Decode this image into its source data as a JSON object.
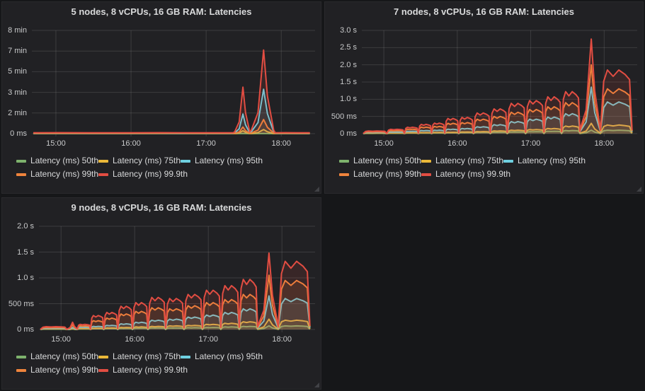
{
  "page": {
    "background": "#161719",
    "panel_background": "#212124",
    "gridline_color": "rgba(255,255,255,0.12)",
    "text_color": "#d8d9da",
    "tick_color": "#c9cacb"
  },
  "chart_data": [
    {
      "type": "area",
      "title": "5 nodes, 8 vCPUs, 16 GB RAM: Latencies",
      "xlabel": "",
      "ylabel": "",
      "values_unit": "seconds",
      "xlim": [
        14.68,
        18.45
      ],
      "ylim": [
        0,
        500
      ],
      "grid": true,
      "legend_position": "bottom-left",
      "y_axis_width": 42,
      "xticks": [
        {
          "label": "15:00",
          "t": 15
        },
        {
          "label": "16:00",
          "t": 16
        },
        {
          "label": "17:00",
          "t": 17
        },
        {
          "label": "18:00",
          "t": 18
        }
      ],
      "yticks": [
        {
          "label": "0 ms",
          "v": 0
        },
        {
          "label": "2 min",
          "v": 100
        },
        {
          "label": "3 min",
          "v": 200
        },
        {
          "label": "5 min",
          "v": 300
        },
        {
          "label": "7 min",
          "v": 400
        },
        {
          "label": "8 min",
          "v": 500
        }
      ],
      "series": [
        {
          "name": "Latency (ms) 50th",
          "color": "#7EB26D"
        },
        {
          "name": "Latency (ms) 75th",
          "color": "#EAB839"
        },
        {
          "name": "Latency (ms) 95th",
          "color": "#6ED0E0"
        },
        {
          "name": "Latency (ms) 99th",
          "color": "#EF843C"
        },
        {
          "name": "Latency (ms) 99.9th",
          "color": "#E24D42"
        }
      ],
      "segments": [
        {
          "shape": "flat",
          "t": [
            14.7,
            15.92
          ],
          "v": [
            0.5,
            0.9,
            1.8,
            2.8,
            4.5
          ]
        },
        {
          "shape": "flat",
          "t": [
            15.98,
            17.36
          ],
          "v": [
            0.5,
            0.9,
            1.8,
            2.8,
            4.5
          ]
        },
        {
          "shape": "spike",
          "t": [
            17.38,
            17.58
          ],
          "v": [
            1,
            14,
            95,
            32,
            225
          ]
        },
        {
          "shape": "spike",
          "t": [
            17.6,
            17.9
          ],
          "v": [
            1,
            20,
            215,
            68,
            405
          ]
        },
        {
          "shape": "flat",
          "t": [
            17.92,
            18.38
          ],
          "v": [
            0.5,
            0.9,
            1.8,
            2.8,
            4.5
          ]
        }
      ]
    },
    {
      "type": "area",
      "title": "7 nodes, 8 vCPUs, 16 GB RAM: Latencies",
      "xlabel": "",
      "ylabel": "",
      "values_unit": "seconds",
      "xlim": [
        14.7,
        18.45
      ],
      "ylim": [
        0,
        3.0
      ],
      "grid": true,
      "legend_position": "bottom-left",
      "y_axis_width": 52,
      "xticks": [
        {
          "label": "15:00",
          "t": 15
        },
        {
          "label": "16:00",
          "t": 16
        },
        {
          "label": "17:00",
          "t": 17
        },
        {
          "label": "18:00",
          "t": 18
        }
      ],
      "yticks": [
        {
          "label": "0 ms",
          "v": 0
        },
        {
          "label": "500 ms",
          "v": 0.5
        },
        {
          "label": "1.0 s",
          "v": 1.0
        },
        {
          "label": "1.5 s",
          "v": 1.5
        },
        {
          "label": "2.0 s",
          "v": 2.0
        },
        {
          "label": "2.5 s",
          "v": 2.5
        },
        {
          "label": "3.0 s",
          "v": 3.0
        }
      ],
      "series": [
        {
          "name": "Latency (ms) 50th",
          "color": "#7EB26D"
        },
        {
          "name": "Latency (ms) 75th",
          "color": "#EAB839"
        },
        {
          "name": "Latency (ms) 95th",
          "color": "#6ED0E0"
        },
        {
          "name": "Latency (ms) 99th",
          "color": "#EF843C"
        },
        {
          "name": "Latency (ms) 99.9th",
          "color": "#E24D42"
        }
      ],
      "segments": [
        {
          "shape": "plateau",
          "t": [
            14.72,
            15.04
          ],
          "v": [
            0.01,
            0.018,
            0.035,
            0.055,
            0.078
          ]
        },
        {
          "shape": "plateau",
          "t": [
            15.04,
            15.28
          ],
          "v": [
            0.012,
            0.02,
            0.05,
            0.09,
            0.125
          ]
        },
        {
          "shape": "plateau",
          "t": [
            15.28,
            15.47
          ],
          "v": [
            0.015,
            0.025,
            0.07,
            0.13,
            0.185
          ]
        },
        {
          "shape": "plateau",
          "t": [
            15.47,
            15.65
          ],
          "v": [
            0.018,
            0.03,
            0.09,
            0.19,
            0.27
          ]
        },
        {
          "shape": "plateau",
          "t": [
            15.65,
            15.83
          ],
          "v": [
            0.02,
            0.035,
            0.1,
            0.21,
            0.305
          ]
        },
        {
          "shape": "plateau",
          "t": [
            15.83,
            16.02
          ],
          "v": [
            0.025,
            0.04,
            0.13,
            0.3,
            0.44
          ]
        },
        {
          "shape": "plateau",
          "t": [
            16.02,
            16.22
          ],
          "v": [
            0.03,
            0.05,
            0.15,
            0.32,
            0.47
          ]
        },
        {
          "shape": "plateau",
          "t": [
            16.22,
            16.45
          ],
          "v": [
            0.035,
            0.06,
            0.2,
            0.42,
            0.6
          ]
        },
        {
          "shape": "plateau",
          "t": [
            16.45,
            16.68
          ],
          "v": [
            0.04,
            0.08,
            0.26,
            0.5,
            0.72
          ]
        },
        {
          "shape": "plateau",
          "t": [
            16.68,
            16.93
          ],
          "v": [
            0.05,
            0.1,
            0.35,
            0.62,
            0.88
          ]
        },
        {
          "shape": "plateau",
          "t": [
            16.93,
            17.18
          ],
          "v": [
            0.06,
            0.12,
            0.42,
            0.7,
            0.96
          ]
        },
        {
          "shape": "plateau",
          "t": [
            17.18,
            17.42
          ],
          "v": [
            0.07,
            0.15,
            0.48,
            0.78,
            1.07
          ]
        },
        {
          "shape": "plateau",
          "t": [
            17.42,
            17.67
          ],
          "v": [
            0.09,
            0.22,
            0.58,
            0.9,
            1.22
          ]
        },
        {
          "shape": "spike",
          "t": [
            17.67,
            17.95
          ],
          "v": [
            0.1,
            0.3,
            1.35,
            2.0,
            2.75
          ]
        },
        {
          "shape": "plateau",
          "t": [
            17.95,
            18.38
          ],
          "v": [
            0.1,
            0.25,
            0.92,
            1.3,
            1.85
          ]
        }
      ]
    },
    {
      "type": "area",
      "title": "9 nodes, 8 vCPUs, 16 GB RAM: Latencies",
      "xlabel": "",
      "ylabel": "",
      "values_unit": "seconds",
      "xlim": [
        14.7,
        18.45
      ],
      "ylim": [
        0,
        2.0
      ],
      "grid": true,
      "legend_position": "bottom-left",
      "y_axis_width": 52,
      "xticks": [
        {
          "label": "15:00",
          "t": 15
        },
        {
          "label": "16:00",
          "t": 16
        },
        {
          "label": "17:00",
          "t": 17
        },
        {
          "label": "18:00",
          "t": 18
        }
      ],
      "yticks": [
        {
          "label": "0 ms",
          "v": 0
        },
        {
          "label": "500 ms",
          "v": 0.5
        },
        {
          "label": "1.0 s",
          "v": 1.0
        },
        {
          "label": "1.5 s",
          "v": 1.5
        },
        {
          "label": "2.0 s",
          "v": 2.0
        }
      ],
      "series": [
        {
          "name": "Latency (ms) 50th",
          "color": "#7EB26D"
        },
        {
          "name": "Latency (ms) 75th",
          "color": "#EAB839"
        },
        {
          "name": "Latency (ms) 95th",
          "color": "#6ED0E0"
        },
        {
          "name": "Latency (ms) 99th",
          "color": "#EF843C"
        },
        {
          "name": "Latency (ms) 99.9th",
          "color": "#E24D42"
        }
      ],
      "segments": [
        {
          "shape": "plateau",
          "t": [
            14.72,
            15.08
          ],
          "v": [
            0.008,
            0.014,
            0.025,
            0.04,
            0.055
          ]
        },
        {
          "shape": "spike",
          "t": [
            15.08,
            15.22
          ],
          "v": [
            0.01,
            0.018,
            0.04,
            0.09,
            0.14
          ]
        },
        {
          "shape": "plateau",
          "t": [
            15.22,
            15.4
          ],
          "v": [
            0.012,
            0.02,
            0.045,
            0.07,
            0.1
          ]
        },
        {
          "shape": "plateau",
          "t": [
            15.4,
            15.58
          ],
          "v": [
            0.015,
            0.025,
            0.06,
            0.17,
            0.27
          ]
        },
        {
          "shape": "plateau",
          "t": [
            15.58,
            15.77
          ],
          "v": [
            0.018,
            0.03,
            0.08,
            0.22,
            0.33
          ]
        },
        {
          "shape": "plateau",
          "t": [
            15.77,
            15.97
          ],
          "v": [
            0.02,
            0.04,
            0.11,
            0.3,
            0.45
          ]
        },
        {
          "shape": "plateau",
          "t": [
            15.97,
            16.18
          ],
          "v": [
            0.025,
            0.05,
            0.14,
            0.35,
            0.52
          ]
        },
        {
          "shape": "plateau",
          "t": [
            16.18,
            16.42
          ],
          "v": [
            0.03,
            0.06,
            0.18,
            0.42,
            0.62
          ]
        },
        {
          "shape": "plateau",
          "t": [
            16.42,
            16.67
          ],
          "v": [
            0.03,
            0.07,
            0.2,
            0.4,
            0.6
          ]
        },
        {
          "shape": "plateau",
          "t": [
            16.67,
            16.92
          ],
          "v": [
            0.035,
            0.08,
            0.24,
            0.46,
            0.68
          ]
        },
        {
          "shape": "plateau",
          "t": [
            16.92,
            17.17
          ],
          "v": [
            0.04,
            0.1,
            0.28,
            0.52,
            0.76
          ]
        },
        {
          "shape": "plateau",
          "t": [
            17.17,
            17.42
          ],
          "v": [
            0.05,
            0.12,
            0.33,
            0.58,
            0.85
          ]
        },
        {
          "shape": "plateau",
          "t": [
            17.42,
            17.67
          ],
          "v": [
            0.06,
            0.15,
            0.4,
            0.68,
            0.97
          ]
        },
        {
          "shape": "spike",
          "t": [
            17.67,
            17.95
          ],
          "v": [
            0.07,
            0.2,
            0.65,
            1.05,
            1.48
          ]
        },
        {
          "shape": "plateau",
          "t": [
            17.95,
            18.38
          ],
          "v": [
            0.07,
            0.18,
            0.6,
            0.95,
            1.32
          ]
        }
      ]
    }
  ]
}
